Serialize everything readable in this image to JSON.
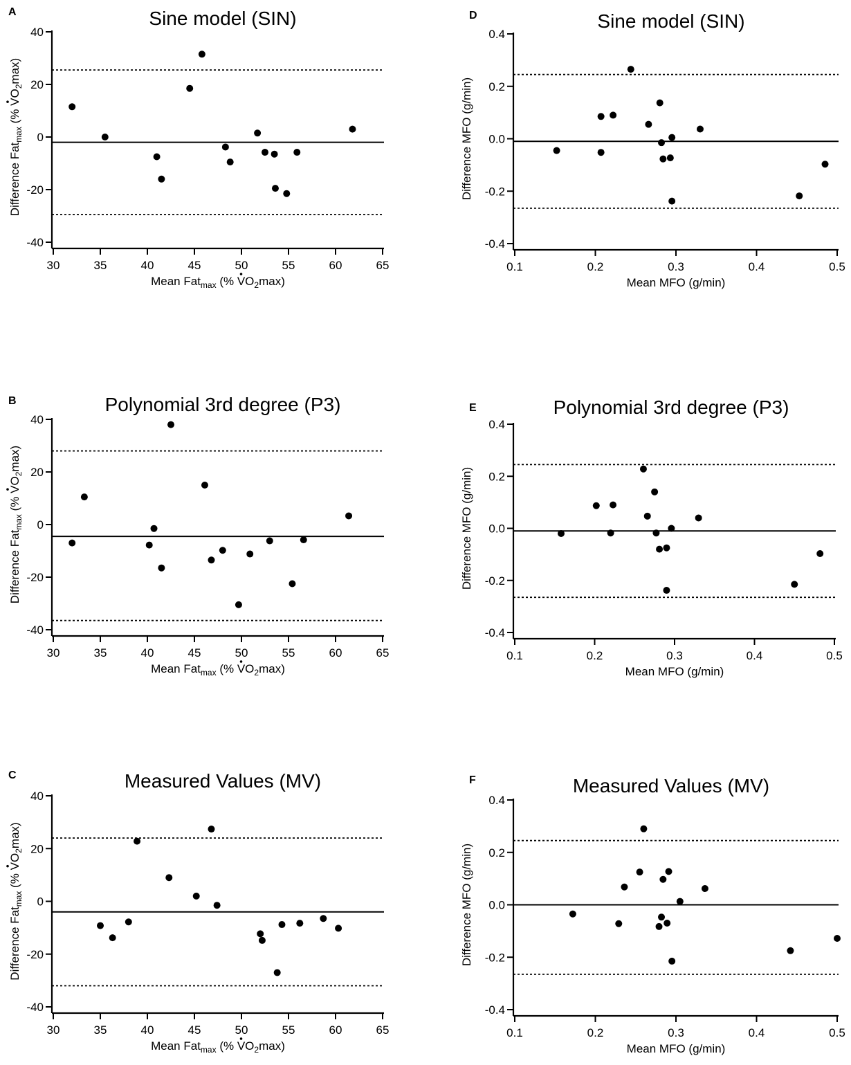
{
  "chart_data": [
    {
      "panel": "A",
      "type": "scatter",
      "title": "Sine model (SIN)",
      "xlabel": {
        "pre": "Mean Fat",
        "sub": "max",
        "post": " (% ",
        "v": "V",
        "o": "O",
        "two": "2",
        "tail": "max)"
      },
      "ylabel": {
        "pre": "Difference Fat",
        "sub": "max",
        "post": " (% ",
        "v": "V",
        "o": "O",
        "two": "2",
        "tail": "max)"
      },
      "xlim": [
        30,
        65
      ],
      "ylim": [
        -40,
        40
      ],
      "xticks": [
        "30",
        "35",
        "40",
        "45",
        "50",
        "55",
        "60",
        "65"
      ],
      "yticks": [
        "-40",
        "-20",
        "0",
        "20",
        "40"
      ],
      "mean_line": -2,
      "loa_upper": 25.5,
      "loa_lower": -29.5,
      "points": [
        [
          32,
          11.5
        ],
        [
          35.5,
          0
        ],
        [
          41,
          -7.5
        ],
        [
          41.5,
          -16
        ],
        [
          44.5,
          18.5
        ],
        [
          45.8,
          31.5
        ],
        [
          48.3,
          -3.8
        ],
        [
          48.8,
          -9.5
        ],
        [
          51.7,
          1.5
        ],
        [
          52.5,
          -5.8
        ],
        [
          53.5,
          -6.5
        ],
        [
          53.6,
          -19.5
        ],
        [
          54.8,
          -21.5
        ],
        [
          55.9,
          -5.8
        ],
        [
          61.8,
          3
        ]
      ]
    },
    {
      "panel": "B",
      "type": "scatter",
      "title": "Polynomial 3rd degree (P3)",
      "xlabel": {
        "pre": "Mean Fat",
        "sub": "max",
        "post": " (% ",
        "v": "V",
        "o": "O",
        "two": "2",
        "tail": "max)"
      },
      "ylabel": {
        "pre": "Difference Fat",
        "sub": "max",
        "post": " (% ",
        "v": "V",
        "o": "O",
        "two": "2",
        "tail": "max)"
      },
      "xlim": [
        30,
        65
      ],
      "ylim": [
        -40,
        40
      ],
      "xticks": [
        "30",
        "35",
        "40",
        "45",
        "50",
        "55",
        "60",
        "65"
      ],
      "yticks": [
        "-40",
        "-20",
        "0",
        "20",
        "40"
      ],
      "mean_line": -4.5,
      "loa_upper": 28,
      "loa_lower": -36.5,
      "points": [
        [
          32,
          -7
        ],
        [
          33.3,
          10.5
        ],
        [
          40.2,
          -7.8
        ],
        [
          40.7,
          -1.5
        ],
        [
          41.5,
          -16.5
        ],
        [
          42.5,
          38
        ],
        [
          46.1,
          15
        ],
        [
          46.8,
          -13.5
        ],
        [
          48,
          -9.8
        ],
        [
          49.7,
          -30.5
        ],
        [
          50.9,
          -11.2
        ],
        [
          53,
          -6.2
        ],
        [
          55.4,
          -22.5
        ],
        [
          56.6,
          -5.8
        ],
        [
          61.4,
          3.3
        ]
      ]
    },
    {
      "panel": "C",
      "type": "scatter",
      "title": "Measured Values (MV)",
      "xlabel": {
        "pre": "Mean Fat",
        "sub": "max",
        "post": " (% ",
        "v": "V",
        "o": "O",
        "two": "2",
        "tail": "max)"
      },
      "ylabel": {
        "pre": "Difference Fat",
        "sub": "max",
        "post": " (% ",
        "v": "V",
        "o": "O",
        "two": "2",
        "tail": "max)"
      },
      "xlim": [
        30,
        65
      ],
      "ylim": [
        -40,
        40
      ],
      "xticks": [
        "30",
        "35",
        "40",
        "45",
        "50",
        "55",
        "60",
        "65"
      ],
      "yticks": [
        "-40",
        "-20",
        "0",
        "20",
        "40"
      ],
      "mean_line": -4,
      "loa_upper": 24,
      "loa_lower": -32,
      "points": [
        [
          35,
          -9.2
        ],
        [
          36.3,
          -13.8
        ],
        [
          38,
          -7.8
        ],
        [
          38.9,
          22.8
        ],
        [
          42.3,
          9
        ],
        [
          45.2,
          2
        ],
        [
          46.8,
          27.4
        ],
        [
          47.4,
          -1.5
        ],
        [
          52,
          -12.3
        ],
        [
          52.2,
          -14.8
        ],
        [
          53.8,
          -27
        ],
        [
          54.3,
          -8.8
        ],
        [
          56.2,
          -8.3
        ],
        [
          58.7,
          -6.5
        ],
        [
          60.3,
          -10.2
        ]
      ]
    },
    {
      "panel": "D",
      "type": "scatter",
      "title": "Sine model (SIN)",
      "xlabel": "Mean MFO (g/min)",
      "ylabel": "Difference MFO (g/min)",
      "xlim": [
        0.1,
        0.5
      ],
      "ylim": [
        -0.4,
        0.4
      ],
      "xticks": [
        "0.1",
        "0.2",
        "0.3",
        "0.4",
        "0.5"
      ],
      "yticks": [
        "-0.4",
        "-0.2",
        "0.0",
        "0.2",
        "0.4"
      ],
      "mean_line": -0.01,
      "loa_upper": 0.245,
      "loa_lower": -0.265,
      "points": [
        [
          0.152,
          -0.045
        ],
        [
          0.207,
          0.085
        ],
        [
          0.207,
          -0.052
        ],
        [
          0.222,
          0.09
        ],
        [
          0.244,
          0.265
        ],
        [
          0.266,
          0.055
        ],
        [
          0.28,
          0.137
        ],
        [
          0.282,
          -0.015
        ],
        [
          0.284,
          -0.077
        ],
        [
          0.293,
          -0.073
        ],
        [
          0.295,
          0.005
        ],
        [
          0.295,
          -0.238
        ],
        [
          0.33,
          0.037
        ],
        [
          0.453,
          -0.218
        ],
        [
          0.485,
          -0.097
        ]
      ]
    },
    {
      "panel": "E",
      "type": "scatter",
      "title": "Polynomial 3rd degree (P3)",
      "xlabel": "Mean MFO (g/min)",
      "ylabel": "Difference MFO (g/min)",
      "xlim": [
        0.1,
        0.5
      ],
      "ylim": [
        -0.4,
        0.4
      ],
      "xticks": [
        "0.1",
        "0.2",
        "0.3",
        "0.4",
        "0.5"
      ],
      "yticks": [
        "-0.4",
        "-0.2",
        "0.0",
        "0.2",
        "0.4"
      ],
      "mean_line": -0.01,
      "loa_upper": 0.245,
      "loa_lower": -0.265,
      "points": [
        [
          0.158,
          -0.02
        ],
        [
          0.202,
          0.087
        ],
        [
          0.22,
          -0.018
        ],
        [
          0.223,
          0.09
        ],
        [
          0.261,
          0.228
        ],
        [
          0.266,
          0.047
        ],
        [
          0.275,
          0.14
        ],
        [
          0.277,
          -0.018
        ],
        [
          0.281,
          -0.08
        ],
        [
          0.29,
          -0.075
        ],
        [
          0.29,
          -0.238
        ],
        [
          0.296,
          0
        ],
        [
          0.33,
          0.04
        ],
        [
          0.45,
          -0.215
        ],
        [
          0.482,
          -0.097
        ]
      ]
    },
    {
      "panel": "F",
      "type": "scatter",
      "title": "Measured Values (MV)",
      "xlabel": "Mean MFO (g/min)",
      "ylabel": "Difference MFO (g/min)",
      "xlim": [
        0.1,
        0.5
      ],
      "ylim": [
        -0.4,
        0.4
      ],
      "xticks": [
        "0.1",
        "0.2",
        "0.3",
        "0.4",
        "0.5"
      ],
      "yticks": [
        "-0.4",
        "-0.2",
        "0.0",
        "0.2",
        "0.4"
      ],
      "mean_line": 0,
      "loa_upper": 0.245,
      "loa_lower": -0.265,
      "points": [
        [
          0.172,
          -0.035
        ],
        [
          0.229,
          -0.072
        ],
        [
          0.236,
          0.068
        ],
        [
          0.255,
          0.125
        ],
        [
          0.26,
          0.29
        ],
        [
          0.279,
          -0.083
        ],
        [
          0.282,
          -0.047
        ],
        [
          0.284,
          0.097
        ],
        [
          0.289,
          -0.07
        ],
        [
          0.291,
          0.127
        ],
        [
          0.295,
          -0.215
        ],
        [
          0.305,
          0.013
        ],
        [
          0.336,
          0.062
        ],
        [
          0.442,
          -0.175
        ],
        [
          0.5,
          -0.128
        ]
      ]
    }
  ]
}
